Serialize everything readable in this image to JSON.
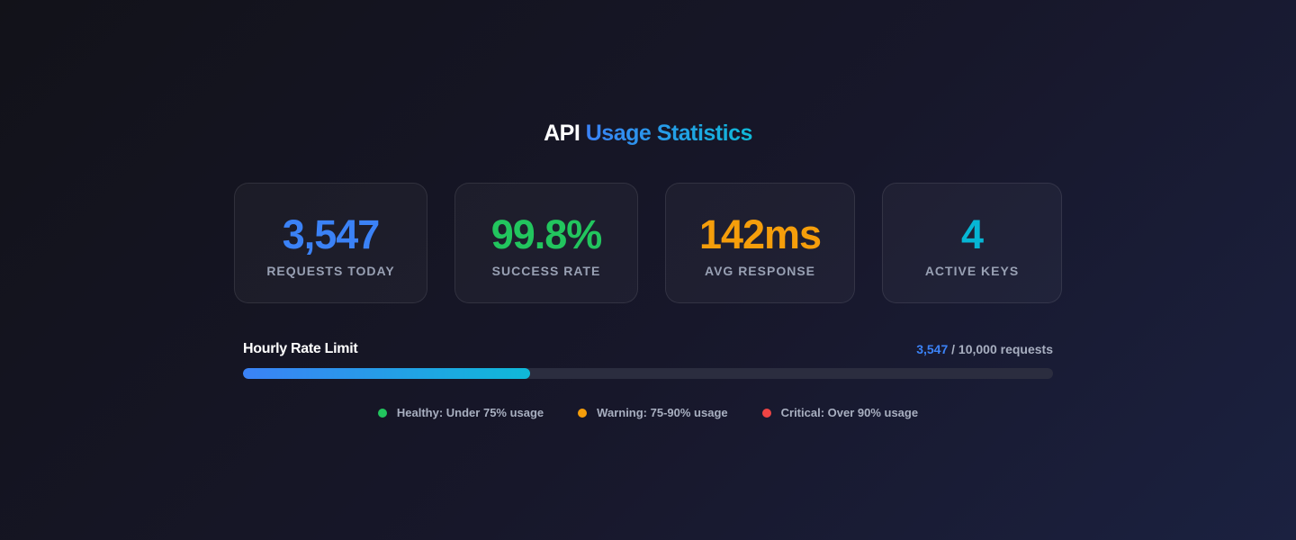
{
  "header": {
    "title_prefix": "API",
    "title_accent": "Usage Statistics"
  },
  "stats": [
    {
      "value": "3,547",
      "label": "REQUESTS TODAY",
      "color": "#3b82f6"
    },
    {
      "value": "99.8%",
      "label": "SUCCESS RATE",
      "color": "#22c55e"
    },
    {
      "value": "142ms",
      "label": "AVG RESPONSE",
      "color": "#f59e0b"
    },
    {
      "value": "4",
      "label": "ACTIVE KEYS",
      "color": "#06b6d4"
    }
  ],
  "rate_limit": {
    "title": "Hourly Rate Limit",
    "used": "3,547",
    "total_text": " / 10,000 requests",
    "used_value": 3547,
    "limit_value": 10000
  },
  "legend": [
    {
      "label": "Healthy: Under 75% usage",
      "color": "#22c55e"
    },
    {
      "label": "Warning: 75-90% usage",
      "color": "#f59e0b"
    },
    {
      "label": "Critical: Over 90% usage",
      "color": "#ef4444"
    }
  ]
}
